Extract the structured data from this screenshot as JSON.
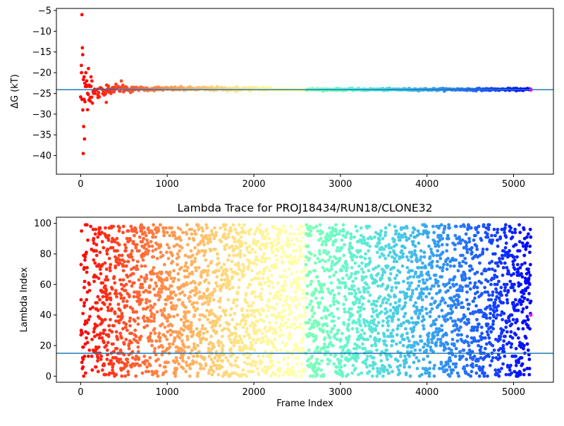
{
  "chart_data": [
    {
      "type": "scatter",
      "title": "",
      "xlabel": "",
      "ylabel": "ΔG (kT)",
      "xlim": [
        -280,
        5460
      ],
      "ylim": [
        -44.5,
        -4.5
      ],
      "xticks": [
        0,
        1000,
        2000,
        3000,
        4000,
        5000
      ],
      "yticks": [
        -40,
        -35,
        -30,
        -25,
        -20,
        -15,
        -10,
        -5
      ],
      "reference_line": {
        "y": -24.1,
        "color": "#1f77b4"
      },
      "series": [
        {
          "color": "colormap:rainbow (red→violet by frame index)",
          "x": [
            10,
            15,
            20,
            25,
            30,
            35,
            40,
            45,
            50,
            60,
            70,
            80,
            90,
            100,
            110,
            120,
            130,
            150,
            200,
            250,
            300,
            350,
            400,
            470,
            500,
            600,
            700,
            800,
            900,
            1000,
            1200,
            1500,
            1800,
            2000,
            2100,
            2500,
            3000,
            3500,
            4000,
            4500,
            5000,
            5200
          ],
          "y": [
            -20,
            -6,
            -14,
            -29,
            -39.5,
            -33,
            -21,
            -36,
            -27,
            -20,
            -22,
            -25,
            -19,
            -23,
            -26,
            -21,
            -22,
            -25,
            -26,
            -24,
            -23,
            -25,
            -24,
            -22,
            -23.5,
            -24.5,
            -23.5,
            -24,
            -23.5,
            -24,
            -23.8,
            -24.2,
            -24.5,
            -24,
            -23.5,
            -24,
            -23.9,
            -24.1,
            -24.1,
            -24.2,
            -24.1,
            -24.2
          ]
        }
      ]
    },
    {
      "type": "scatter",
      "title": "Lambda Trace for PROJ18434/RUN18/CLONE32",
      "xlabel": "Frame Index",
      "ylabel": "Lambda Index",
      "xlim": [
        -280,
        5460
      ],
      "ylim": [
        -4,
        104
      ],
      "xticks": [
        0,
        1000,
        2000,
        3000,
        4000,
        5000
      ],
      "yticks": [
        0,
        20,
        40,
        60,
        80,
        100
      ],
      "reference_line": {
        "y": 15,
        "color": "#1f77b4"
      },
      "points_note_frame_range": [
        0,
        5200
      ],
      "points_note_lambda_range": [
        0,
        99
      ],
      "series": [
        {
          "color": "colormap:rainbow (red→violet by frame index)",
          "x": [
            5,
            10,
            20,
            40,
            60,
            80,
            100,
            150,
            200,
            300,
            500,
            800,
            1000,
            1500,
            2000,
            2500,
            3000,
            3500,
            4000,
            4500,
            5000,
            5200
          ],
          "y": [
            50,
            95,
            5,
            46,
            80,
            22,
            60,
            90,
            12,
            70,
            35,
            55,
            18,
            88,
            42,
            8,
            95,
            28,
            63,
            15,
            85,
            40
          ]
        }
      ]
    }
  ]
}
